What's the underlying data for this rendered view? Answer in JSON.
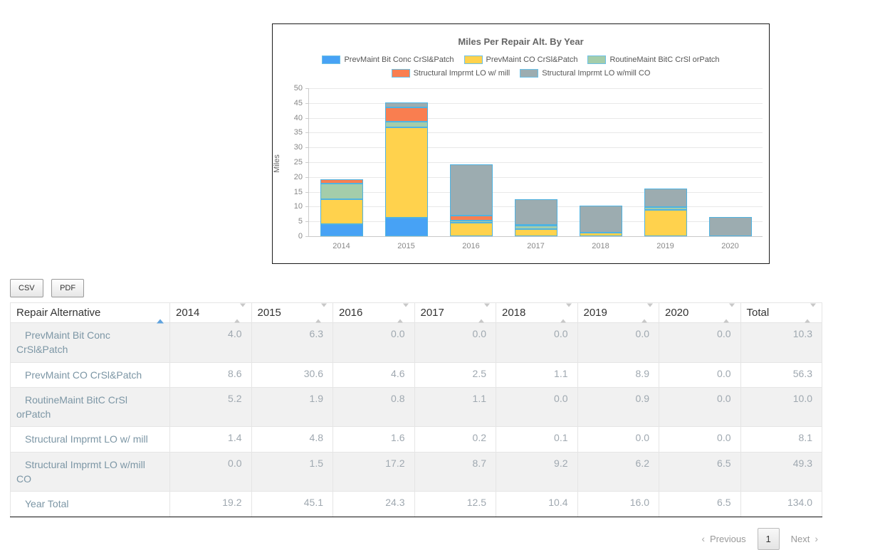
{
  "chart_data": {
    "type": "bar",
    "stacked": true,
    "title": "Miles Per Repair Alt. By Year",
    "xlabel": "",
    "ylabel": "Miles",
    "ylim": [
      0,
      50
    ],
    "ytick_step": 5,
    "grid": true,
    "legend_position": "top",
    "categories": [
      "2014",
      "2015",
      "2016",
      "2017",
      "2018",
      "2019",
      "2020"
    ],
    "series": [
      {
        "name": "PrevMaint Bit Conc CrSl&Patch",
        "color": "#47a2f5",
        "values": [
          4.0,
          6.3,
          0.0,
          0.0,
          0.0,
          0.0,
          0.0
        ]
      },
      {
        "name": "PrevMaint CO CrSl&Patch",
        "color": "#ffd24d",
        "values": [
          8.6,
          30.6,
          4.6,
          2.5,
          1.1,
          8.9,
          0.0
        ]
      },
      {
        "name": "RoutineMaint BitC CrSl orPatch",
        "color": "#a4cdaa",
        "values": [
          5.2,
          1.9,
          0.8,
          1.1,
          0.0,
          0.9,
          0.0
        ]
      },
      {
        "name": "Structural Imprmt LO w/ mill",
        "color": "#f97e50",
        "values": [
          1.4,
          4.8,
          1.6,
          0.2,
          0.1,
          0.0,
          0.0
        ]
      },
      {
        "name": "Structural Imprmt LO w/mill CO",
        "color": "#9cacb0",
        "values": [
          0.0,
          1.5,
          17.2,
          8.7,
          9.2,
          6.2,
          6.5
        ]
      }
    ],
    "legend_rows": [
      [
        0,
        1,
        2
      ],
      [
        3,
        4
      ]
    ]
  },
  "toolbar": {
    "csv_label": "CSV",
    "pdf_label": "PDF"
  },
  "table": {
    "columns": [
      "Repair Alternative",
      "2014",
      "2015",
      "2016",
      "2017",
      "2018",
      "2019",
      "2020",
      "Total"
    ],
    "sorted_column": 0,
    "sorted_direction": "asc",
    "rows": [
      {
        "label": "PrevMaint Bit Conc CrSl&Patch",
        "values": [
          "4.0",
          "6.3",
          "0.0",
          "0.0",
          "0.0",
          "0.0",
          "0.0",
          "10.3"
        ]
      },
      {
        "label": "PrevMaint CO CrSl&Patch",
        "values": [
          "8.6",
          "30.6",
          "4.6",
          "2.5",
          "1.1",
          "8.9",
          "0.0",
          "56.3"
        ]
      },
      {
        "label": "RoutineMaint BitC CrSl orPatch",
        "values": [
          "5.2",
          "1.9",
          "0.8",
          "1.1",
          "0.0",
          "0.9",
          "0.0",
          "10.0"
        ]
      },
      {
        "label": "Structural Imprmt LO w/ mill",
        "values": [
          "1.4",
          "4.8",
          "1.6",
          "0.2",
          "0.1",
          "0.0",
          "0.0",
          "8.1"
        ]
      },
      {
        "label": "Structural Imprmt LO w/mill CO",
        "values": [
          "0.0",
          "1.5",
          "17.2",
          "8.7",
          "9.2",
          "6.2",
          "6.5",
          "49.3"
        ]
      },
      {
        "label": "Year Total",
        "values": [
          "19.2",
          "45.1",
          "24.3",
          "12.5",
          "10.4",
          "16.0",
          "6.5",
          "134.0"
        ]
      }
    ]
  },
  "pagination": {
    "prev_icon": "‹",
    "previous_label": "Previous",
    "current_page": "1",
    "next_label": "Next",
    "next_icon": "›"
  }
}
